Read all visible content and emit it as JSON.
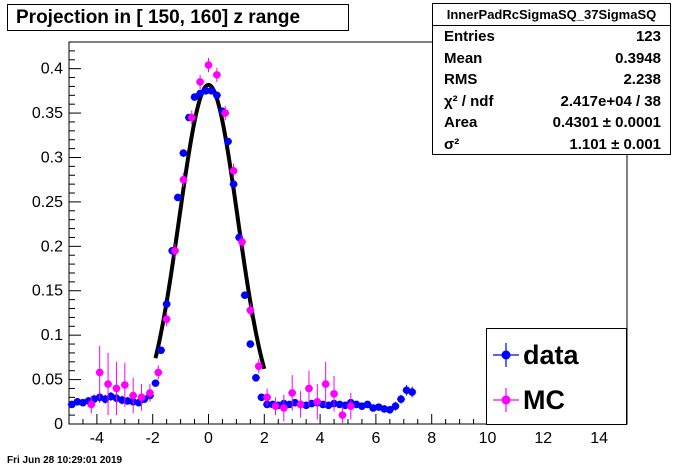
{
  "title": "Projection in [ 150, 160] z range",
  "stats": {
    "name": "InnerPadRcSigmaSQ_37SigmaSQ",
    "rows": [
      {
        "label": "Entries",
        "value": "123"
      },
      {
        "label": "Mean",
        "value": "0.3948"
      },
      {
        "label": "RMS",
        "value": "2.238"
      },
      {
        "label": "χ² / ndf",
        "value": "2.417e+04 / 38"
      },
      {
        "label": "Area",
        "value": "0.4301 ± 0.0001"
      },
      {
        "label": "σ²",
        "value": "1.101 ± 0.001"
      }
    ]
  },
  "legend": {
    "data_label": "data",
    "mc_label": "MC"
  },
  "footer": "Fri Jun 28 10:29:01 2019",
  "colors": {
    "data": "#0000ff",
    "mc": "#ff00ff",
    "fit": "#000000"
  },
  "chart_data": {
    "type": "scatter",
    "title": "Projection in [ 150, 160] z range",
    "xlabel": "",
    "ylabel": "",
    "xlim": [
      -5,
      15
    ],
    "ylim": [
      0,
      0.43
    ],
    "xticks": [
      "-4",
      "-2",
      "0",
      "2",
      "4",
      "6",
      "8",
      "10",
      "12",
      "14"
    ],
    "yticks": [
      "0",
      "0.05",
      "0.1",
      "0.15",
      "0.2",
      "0.25",
      "0.3",
      "0.35",
      "0.4"
    ],
    "series": [
      {
        "name": "data",
        "x": [
          -4.9,
          -4.7,
          -4.5,
          -4.3,
          -4.1,
          -3.9,
          -3.7,
          -3.5,
          -3.3,
          -3.1,
          -2.9,
          -2.7,
          -2.5,
          -2.3,
          -2.1,
          -1.9,
          -1.7,
          -1.5,
          -1.3,
          -1.1,
          -0.9,
          -0.7,
          -0.5,
          -0.3,
          -0.1,
          0.1,
          0.3,
          0.5,
          0.7,
          0.9,
          1.1,
          1.3,
          1.5,
          1.7,
          1.9,
          2.1,
          2.3,
          2.5,
          2.7,
          2.9,
          3.1,
          3.3,
          3.5,
          3.7,
          3.9,
          4.1,
          4.3,
          4.5,
          4.7,
          4.9,
          5.1,
          5.3,
          5.5,
          5.7,
          5.9,
          6.1,
          6.3,
          6.5,
          6.7,
          6.9,
          7.1,
          7.3
        ],
        "y": [
          0.022,
          0.025,
          0.024,
          0.026,
          0.028,
          0.03,
          0.028,
          0.031,
          0.029,
          0.027,
          0.026,
          0.025,
          0.024,
          0.028,
          0.032,
          0.046,
          0.083,
          0.135,
          0.195,
          0.255,
          0.305,
          0.345,
          0.368,
          0.372,
          0.375,
          0.375,
          0.37,
          0.352,
          0.318,
          0.27,
          0.21,
          0.145,
          0.09,
          0.052,
          0.03,
          0.022,
          0.022,
          0.021,
          0.023,
          0.022,
          0.024,
          0.022,
          0.021,
          0.023,
          0.024,
          0.022,
          0.021,
          0.023,
          0.022,
          0.021,
          0.024,
          0.022,
          0.02,
          0.022,
          0.018,
          0.019,
          0.017,
          0.016,
          0.02,
          0.028,
          0.038,
          0.036
        ],
        "yerr": [
          0.003,
          0.004,
          0.003,
          0.004,
          0.005,
          0.006,
          0.005,
          0.005,
          0.006,
          0.005,
          0.004,
          0.004,
          0.004,
          0.004,
          0.004,
          0.004,
          0.004,
          0.004,
          0.004,
          0.004,
          0.004,
          0.004,
          0.004,
          0.004,
          0.004,
          0.004,
          0.004,
          0.004,
          0.004,
          0.004,
          0.004,
          0.004,
          0.004,
          0.004,
          0.004,
          0.003,
          0.003,
          0.003,
          0.003,
          0.003,
          0.003,
          0.003,
          0.003,
          0.003,
          0.003,
          0.003,
          0.003,
          0.003,
          0.003,
          0.003,
          0.003,
          0.003,
          0.003,
          0.003,
          0.003,
          0.004,
          0.004,
          0.004,
          0.005,
          0.005,
          0.006,
          0.006
        ]
      },
      {
        "name": "MC",
        "x": [
          -4.2,
          -3.9,
          -3.6,
          -3.3,
          -3.0,
          -2.7,
          -2.4,
          -2.1,
          -1.8,
          -1.5,
          -1.2,
          -0.9,
          -0.6,
          -0.3,
          0.0,
          0.3,
          0.6,
          0.9,
          1.2,
          1.5,
          1.8,
          2.1,
          2.4,
          2.7,
          3.0,
          3.3,
          3.6,
          3.9,
          4.2,
          4.5,
          4.8,
          5.1
        ],
        "y": [
          0.022,
          0.058,
          0.045,
          0.04,
          0.044,
          0.032,
          0.03,
          0.035,
          0.058,
          0.118,
          0.195,
          0.275,
          0.345,
          0.385,
          0.404,
          0.393,
          0.35,
          0.285,
          0.205,
          0.128,
          0.065,
          0.03,
          0.02,
          0.018,
          0.035,
          0.022,
          0.04,
          0.025,
          0.045,
          0.034,
          0.01,
          0.02
        ],
        "yerr": [
          0.01,
          0.03,
          0.035,
          0.03,
          0.025,
          0.02,
          0.015,
          0.01,
          0.008,
          0.008,
          0.008,
          0.008,
          0.008,
          0.008,
          0.008,
          0.008,
          0.008,
          0.008,
          0.008,
          0.008,
          0.008,
          0.01,
          0.01,
          0.015,
          0.02,
          0.015,
          0.02,
          0.02,
          0.025,
          0.02,
          0.01,
          0.015
        ]
      }
    ],
    "fit": {
      "type": "gaussian",
      "mean": 0.0,
      "sigma2": 1.101,
      "area": 0.4301,
      "range": [
        -1.9,
        2.0
      ]
    }
  }
}
